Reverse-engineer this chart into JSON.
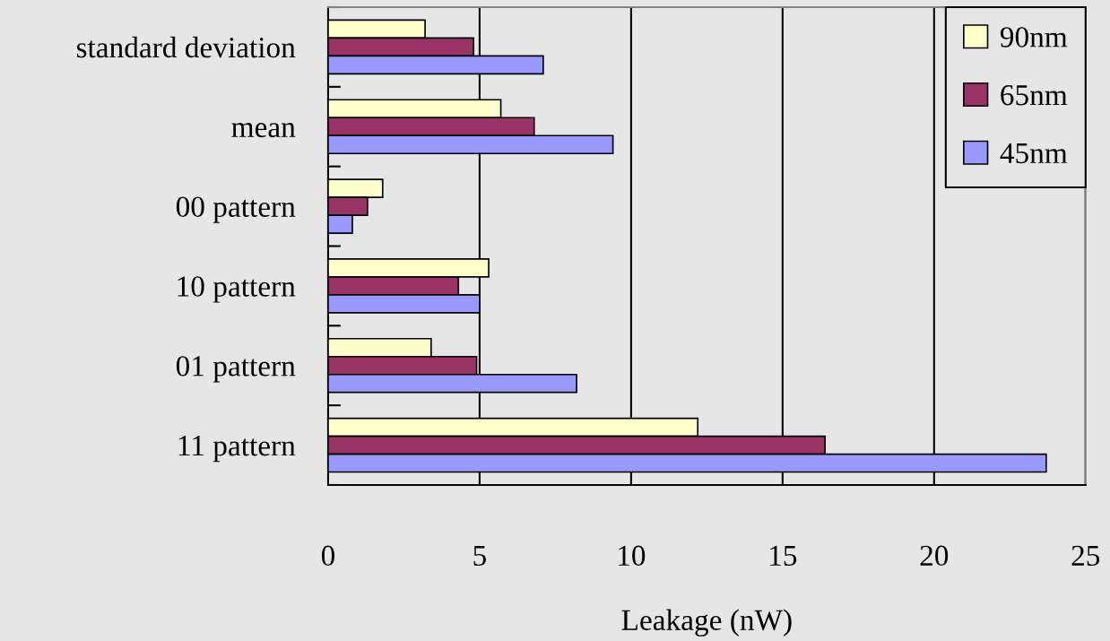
{
  "chart_data": {
    "type": "bar",
    "orientation": "horizontal",
    "xlabel": "Leakage (nW)",
    "categories": [
      "standard deviation",
      "mean",
      "00 pattern",
      "10 pattern",
      "01 pattern",
      "11 pattern"
    ],
    "series": [
      {
        "name": "90nm",
        "color": "#ffffcc",
        "values": [
          3.2,
          5.7,
          1.8,
          5.3,
          3.4,
          12.2
        ]
      },
      {
        "name": "65nm",
        "color": "#993366",
        "values": [
          4.8,
          6.8,
          1.3,
          4.3,
          4.9,
          16.4
        ]
      },
      {
        "name": "45nm",
        "color": "#9999ff",
        "values": [
          7.1,
          9.4,
          0.8,
          5.0,
          8.2,
          23.7
        ]
      }
    ],
    "xlim": [
      0,
      25
    ],
    "xticks": [
      0,
      5,
      10,
      15,
      20,
      25
    ],
    "grid": "x",
    "legend": "top right"
  }
}
